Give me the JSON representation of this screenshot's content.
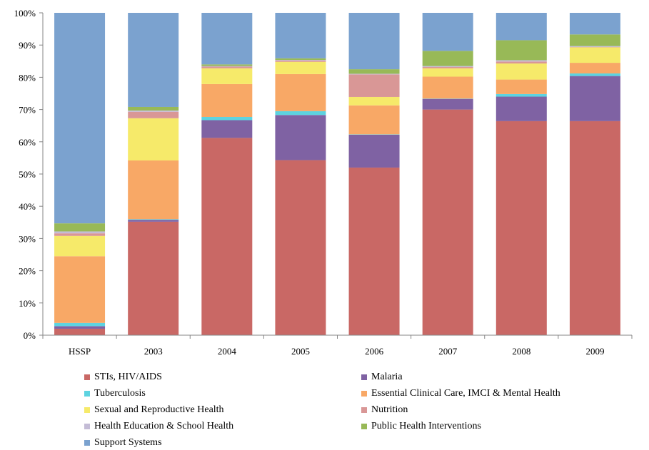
{
  "chart_data": {
    "type": "bar",
    "stacked": true,
    "percent_stacked": true,
    "categories": [
      "HSSP",
      "2003",
      "2004",
      "2005",
      "2006",
      "2007",
      "2008",
      "2009"
    ],
    "y_ticks": [
      "0%",
      "10%",
      "20%",
      "30%",
      "40%",
      "50%",
      "60%",
      "70%",
      "80%",
      "90%",
      "100%"
    ],
    "ylim": [
      0,
      100
    ],
    "grid": false,
    "legend_position": "bottom",
    "series": [
      {
        "name": "STIs, HIV/AIDS",
        "color": "#C96865",
        "values": [
          2.0,
          35.2,
          61.2,
          54.3,
          52.0,
          70.0,
          66.4,
          66.4
        ]
      },
      {
        "name": "Malaria",
        "color": "#7F62A3",
        "values": [
          0.8,
          0.6,
          5.5,
          14.0,
          10.2,
          3.3,
          7.6,
          14.0
        ]
      },
      {
        "name": "Tuberculosis",
        "color": "#5DD3E0",
        "values": [
          1.0,
          0.2,
          1.0,
          1.2,
          0.1,
          0.1,
          0.8,
          0.8
        ]
      },
      {
        "name": "Essential Clinical Care, IMCI & Mental Health",
        "color": "#F8A866",
        "values": [
          20.7,
          18.2,
          10.2,
          11.5,
          9.0,
          6.8,
          4.5,
          3.3
        ]
      },
      {
        "name": "Sexual and Reproductive Health",
        "color": "#F6EA6A",
        "values": [
          6.3,
          13.1,
          4.9,
          3.8,
          2.6,
          2.6,
          5.0,
          4.8
        ]
      },
      {
        "name": "Nutrition",
        "color": "#D99796",
        "values": [
          0.8,
          2.0,
          0.5,
          0.4,
          7.0,
          0.4,
          0.6,
          0.1
        ]
      },
      {
        "name": "Health Education & School Health",
        "color": "#C4BCD6",
        "values": [
          0.6,
          0.4,
          0.2,
          0.2,
          0.2,
          0.3,
          0.4,
          0.3
        ]
      },
      {
        "name": "Public Health Interventions",
        "color": "#98B957",
        "values": [
          2.5,
          1.1,
          0.5,
          0.5,
          1.4,
          4.7,
          6.2,
          3.6
        ]
      },
      {
        "name": "Support Systems",
        "color": "#7BA2CF",
        "values": [
          65.3,
          29.2,
          16.0,
          14.1,
          17.5,
          11.8,
          8.5,
          6.7
        ]
      }
    ]
  }
}
